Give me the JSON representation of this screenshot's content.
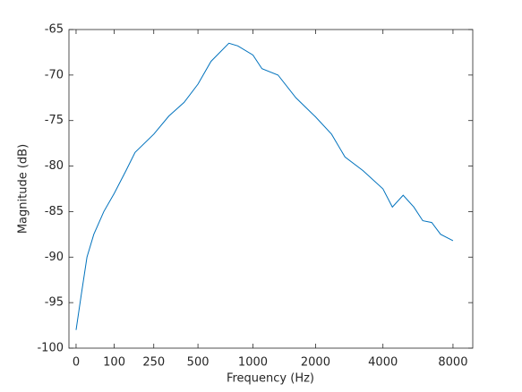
{
  "chart_data": {
    "type": "line",
    "xlabel": "Frequency (Hz)",
    "ylabel": "Magnitude (dB)",
    "xscale": "erb",
    "x": [
      0,
      12,
      25,
      42,
      69,
      100,
      139,
      172,
      250,
      324,
      410,
      500,
      596,
      749,
      836,
      1000,
      1110,
      1331,
      1620,
      2000,
      2366,
      2719,
      3268,
      4000,
      4396,
      4895,
      5442,
      5945,
      6494,
      7087,
      8000
    ],
    "series": [
      {
        "color": "#0072bd",
        "values": [
          -98,
          -94,
          -90,
          -87.5,
          -85,
          -83,
          -80.5,
          -78.5,
          -76.5,
          -74.5,
          -73,
          -71,
          -68.5,
          -66.5,
          -66.8,
          -67.8,
          -69.3,
          -70,
          -72.5,
          -74.6,
          -76.5,
          -79,
          -80.5,
          -82.5,
          -84.5,
          -83.2,
          -84.5,
          -86,
          -86.2,
          -87.5,
          -88.2
        ]
      }
    ],
    "xlim": [
      -15,
      9700
    ],
    "ylim": [
      -100,
      -65
    ],
    "xticks": [
      0,
      100,
      250,
      500,
      1000,
      2000,
      4000,
      8000
    ],
    "yticks": [
      -100,
      -95,
      -90,
      -85,
      -80,
      -75,
      -70,
      -65
    ]
  }
}
